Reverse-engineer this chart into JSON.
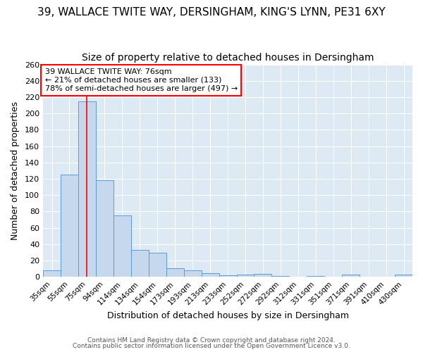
{
  "title": "39, WALLACE TWITE WAY, DERSINGHAM, KING'S LYNN, PE31 6XY",
  "subtitle": "Size of property relative to detached houses in Dersingham",
  "xlabel": "Distribution of detached houses by size in Dersingham",
  "ylabel": "Number of detached properties",
  "footer_line1": "Contains HM Land Registry data © Crown copyright and database right 2024.",
  "footer_line2": "Contains public sector information licensed under the Open Government Licence v3.0.",
  "bin_labels": [
    "35sqm",
    "55sqm",
    "75sqm",
    "94sqm",
    "114sqm",
    "134sqm",
    "154sqm",
    "173sqm",
    "193sqm",
    "213sqm",
    "233sqm",
    "252sqm",
    "272sqm",
    "292sqm",
    "312sqm",
    "331sqm",
    "351sqm",
    "371sqm",
    "391sqm",
    "410sqm",
    "430sqm"
  ],
  "bar_heights": [
    8,
    125,
    215,
    118,
    75,
    33,
    30,
    11,
    8,
    5,
    2,
    3,
    4,
    1,
    0,
    1,
    0,
    3,
    0,
    0,
    3
  ],
  "bar_color": "#c5d8ed",
  "bar_edge_color": "#5b9bd5",
  "plot_bg_color": "#dde9f3",
  "fig_bg_color": "#ffffff",
  "grid_color": "#ffffff",
  "annotation_line1": "39 WALLACE TWITE WAY: 76sqm",
  "annotation_line2": "← 21% of detached houses are smaller (133)",
  "annotation_line3": "78% of semi-detached houses are larger (497) →",
  "red_line_x": 2,
  "ylim": [
    0,
    260
  ],
  "yticks": [
    0,
    20,
    40,
    60,
    80,
    100,
    120,
    140,
    160,
    180,
    200,
    220,
    240,
    260
  ],
  "annotation_fontsize": 8,
  "title_fontsize": 11,
  "subtitle_fontsize": 10,
  "xlabel_fontsize": 9,
  "ylabel_fontsize": 9
}
